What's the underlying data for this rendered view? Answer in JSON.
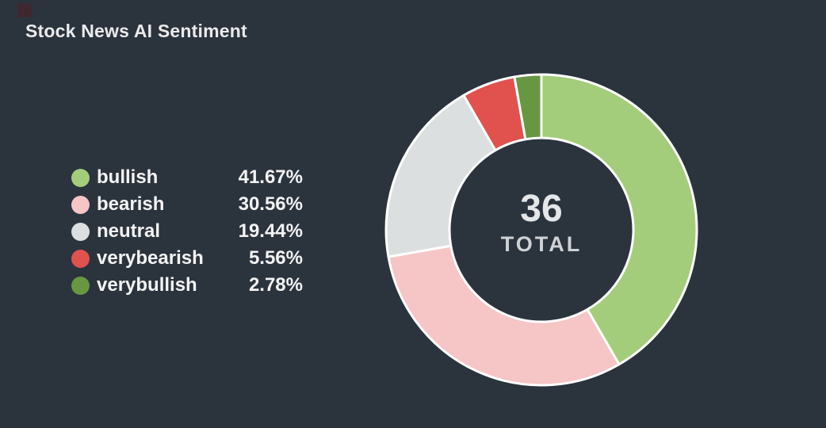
{
  "title": "Stock News AI Sentiment",
  "colors": {
    "background": "#2b333d",
    "title_text": "#ebebeb",
    "legend_text": "#f3f3f3",
    "center_value_text": "#e4e6e8",
    "center_label_text": "#d0d3d6",
    "slice_border": "#ffffff",
    "corner_marker": "#3e2830"
  },
  "chart_data": {
    "type": "pie",
    "variant": "donut",
    "title": "Stock News AI Sentiment",
    "total": 36,
    "center": {
      "value": "36",
      "label": "TOTAL"
    },
    "start_angle_deg": 0,
    "direction": "clockwise",
    "legend_position": "left",
    "slices": [
      {
        "label": "bullish",
        "count": 15,
        "percent": 41.67,
        "percent_label": "41.67%",
        "color": "#a4cd7b"
      },
      {
        "label": "bearish",
        "count": 11,
        "percent": 30.56,
        "percent_label": "30.56%",
        "color": "#f6c5c6"
      },
      {
        "label": "neutral",
        "count": 7,
        "percent": 19.44,
        "percent_label": "19.44%",
        "color": "#dcdfdf"
      },
      {
        "label": "verybearish",
        "count": 2,
        "percent": 5.56,
        "percent_label": "5.56%",
        "color": "#e1514e"
      },
      {
        "label": "verybullish",
        "count": 1,
        "percent": 2.78,
        "percent_label": "2.78%",
        "color": "#689741"
      }
    ]
  }
}
